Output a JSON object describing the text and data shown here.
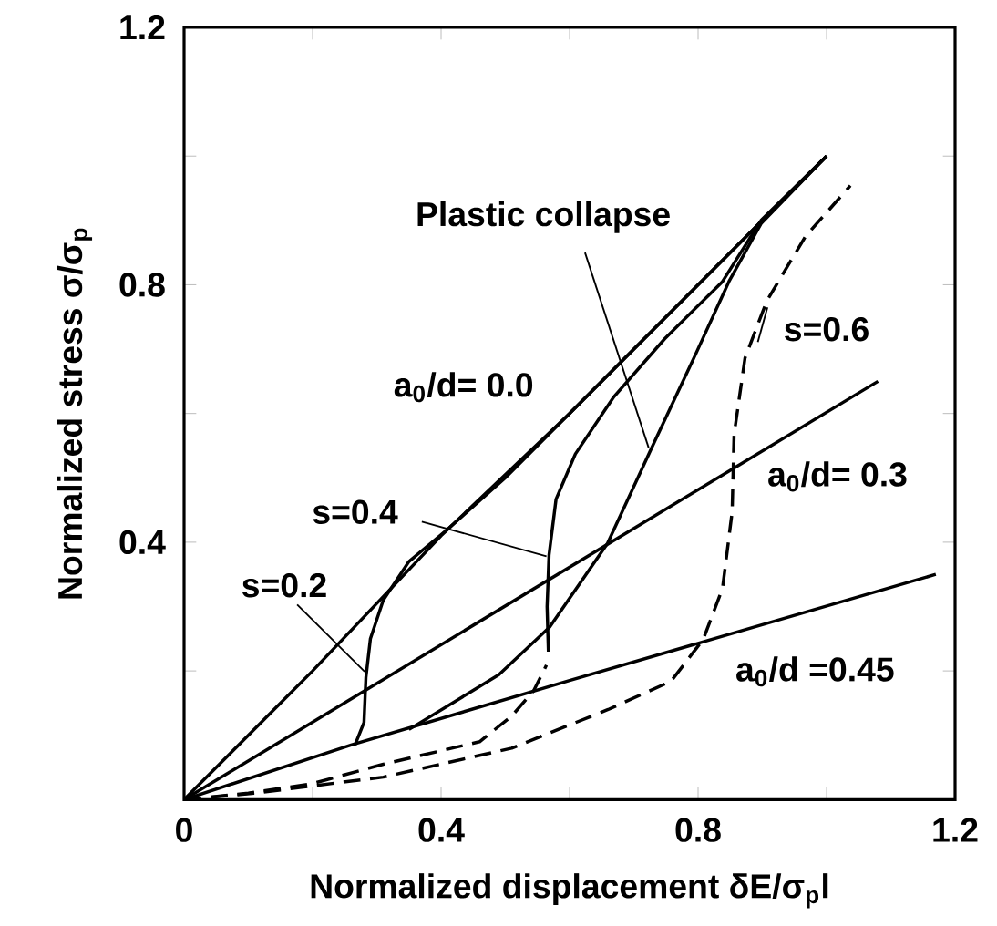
{
  "chart_data": {
    "type": "line",
    "xlabel": "Normalized displacement δE/σ$_{p}$l",
    "ylabel": "Normalized stress σ/σ$_{p}$",
    "annotations": [
      {
        "text": "Plastic collapse",
        "x": 0.723,
        "y": 0.547
      },
      {
        "text": "s=0.6",
        "x": 0.908,
        "y": 0.765
      }
    ],
    "xlim": [
      0,
      1.2
    ],
    "ylim": [
      0,
      1.2
    ],
    "xticks": [
      0,
      {
        "value": 0.2,
        "label": null
      },
      0.4,
      {
        "value": 0.6,
        "label": null
      },
      0.8,
      {
        "value": 1.0,
        "label": null
      },
      1.2
    ],
    "yticks": [
      {
        "value": 0,
        "label": null
      },
      {
        "value": 0.2,
        "label": null
      },
      0.4,
      {
        "value": 0.6,
        "label": null
      },
      0.8,
      {
        "value": 1.0,
        "label": null
      },
      1.2
    ],
    "series": [
      {
        "name": "a$_{0}$/d= 0.0",
        "color": "#000000",
        "line_style": "solid",
        "x": [
          0,
          0.2,
          0.4,
          0.6,
          0.8,
          0.9,
          1.0
        ],
        "values": [
          0,
          0.2,
          0.41,
          0.6,
          0.8,
          0.9,
          1.0
        ]
      },
      {
        "name": "a$_{0}$/d= 0.3",
        "color": "#000000",
        "line_style": "solid",
        "x": [
          0,
          1.08
        ],
        "values": [
          0,
          0.65
        ]
      },
      {
        "name": "a$_{0}$/d =0.45",
        "color": "#000000",
        "line_style": "solid",
        "x": [
          0,
          0.26,
          0.6,
          1.17
        ],
        "values": [
          0,
          0.085,
          0.185,
          0.35
        ]
      },
      {
        "name": "s=0.2",
        "color": "#000000",
        "line_style": "solid",
        "x": [
          0.266,
          0.28,
          0.283,
          0.29,
          0.31,
          0.35,
          0.41,
          0.5,
          0.7,
          0.9,
          1.0
        ],
        "values": [
          0.085,
          0.12,
          0.19,
          0.25,
          0.31,
          0.37,
          0.42,
          0.5,
          0.7,
          0.9,
          1.0
        ]
      },
      {
        "name": "s=0.4",
        "color": "#000000",
        "line_style": "solid",
        "x": [
          0.567,
          0.565,
          0.568,
          0.579,
          0.609,
          0.669,
          0.748,
          0.838,
          0.898,
          1.0
        ],
        "values": [
          0.23,
          0.3,
          0.38,
          0.467,
          0.537,
          0.626,
          0.716,
          0.805,
          0.9,
          1.0
        ]
      },
      {
        "color": "#000000",
        "line_style": "dashed",
        "x": [
          0,
          0.1,
          0.2,
          0.31,
          0.46,
          0.51,
          0.544,
          0.564
        ],
        "values": [
          0,
          0.01,
          0.025,
          0.055,
          0.09,
          0.13,
          0.169,
          0.209
        ]
      },
      {
        "color": "#000000",
        "line_style": "solid",
        "x": [
          0.35,
          0.49,
          0.569,
          0.659,
          0.728,
          0.798,
          0.848,
          0.898,
          1.0
        ],
        "values": [
          0.109,
          0.194,
          0.268,
          0.398,
          0.547,
          0.696,
          0.805,
          0.895,
          1.0
        ]
      },
      {
        "color": "#000000",
        "line_style": "dashed",
        "x": [
          0,
          0.11,
          0.31,
          0.51,
          0.66,
          0.758,
          0.808,
          0.838,
          0.853,
          0.856,
          0.873,
          0.907,
          0.967,
          1.037
        ],
        "values": [
          0,
          0.01,
          0.035,
          0.08,
          0.14,
          0.184,
          0.249,
          0.328,
          0.447,
          0.567,
          0.686,
          0.775,
          0.875,
          0.954
        ]
      }
    ]
  }
}
